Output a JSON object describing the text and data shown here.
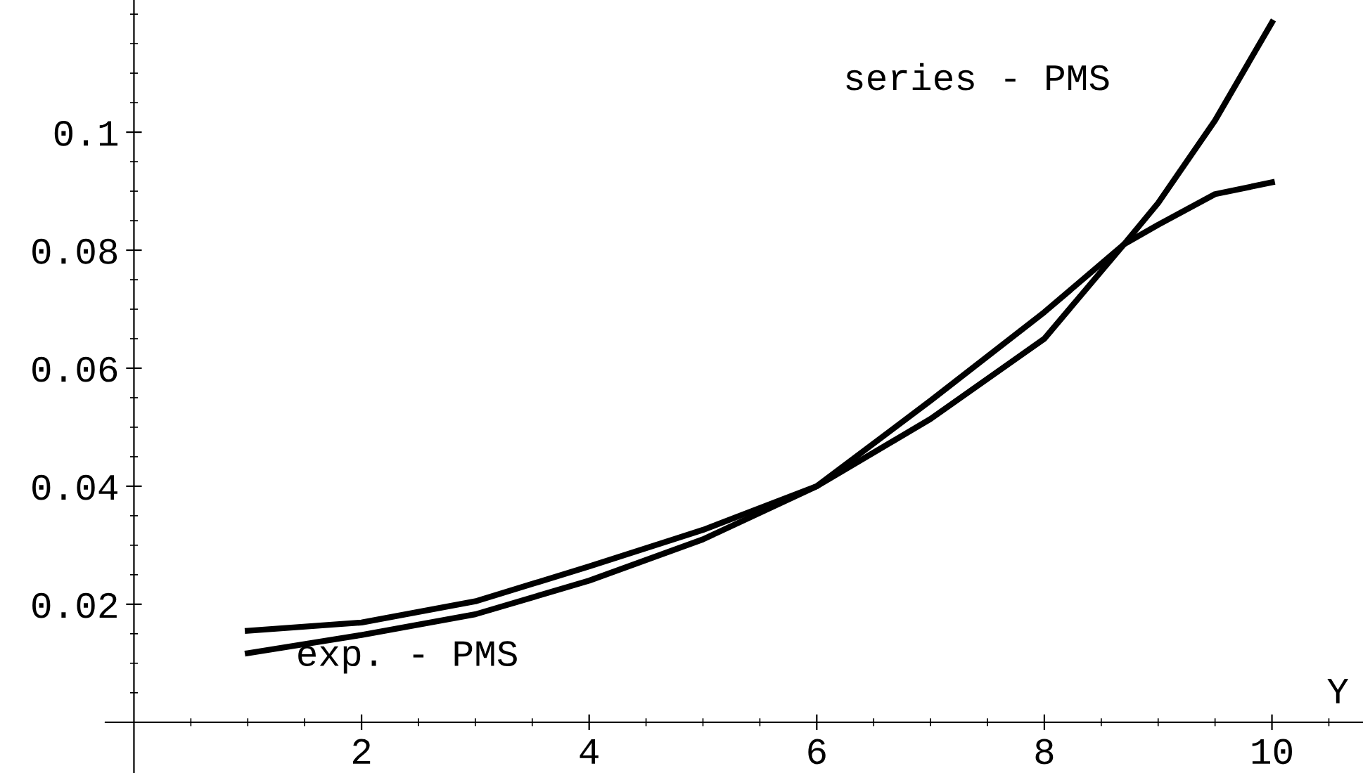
{
  "chart_data": {
    "type": "line",
    "xlabel": "Y",
    "xlim": [
      -0.25,
      10.8
    ],
    "ylim": [
      -0.0086,
      0.1224
    ],
    "xticks": [
      2,
      4,
      6,
      8,
      10
    ],
    "yticks": [
      0.02,
      0.04,
      0.06,
      0.08,
      0.1
    ],
    "grid": false,
    "legend": false,
    "marker": "none",
    "line_style": "solid",
    "x": [
      1,
      2,
      3,
      4,
      5,
      6,
      7,
      8,
      8.7,
      9,
      9.5,
      10
    ],
    "series": [
      {
        "name": "series - PMS",
        "color": "#000000",
        "values": [
          0.0155,
          0.0169,
          0.0205,
          0.0264,
          0.0326,
          0.04,
          0.0514,
          0.065,
          0.081,
          0.088,
          0.102,
          0.1186
        ]
      },
      {
        "name": "exp. - PMS",
        "color": "#000000",
        "values": [
          0.0117,
          0.0148,
          0.0183,
          0.024,
          0.031,
          0.04,
          0.0545,
          0.0695,
          0.081,
          0.0843,
          0.0895,
          0.0915
        ]
      }
    ]
  }
}
